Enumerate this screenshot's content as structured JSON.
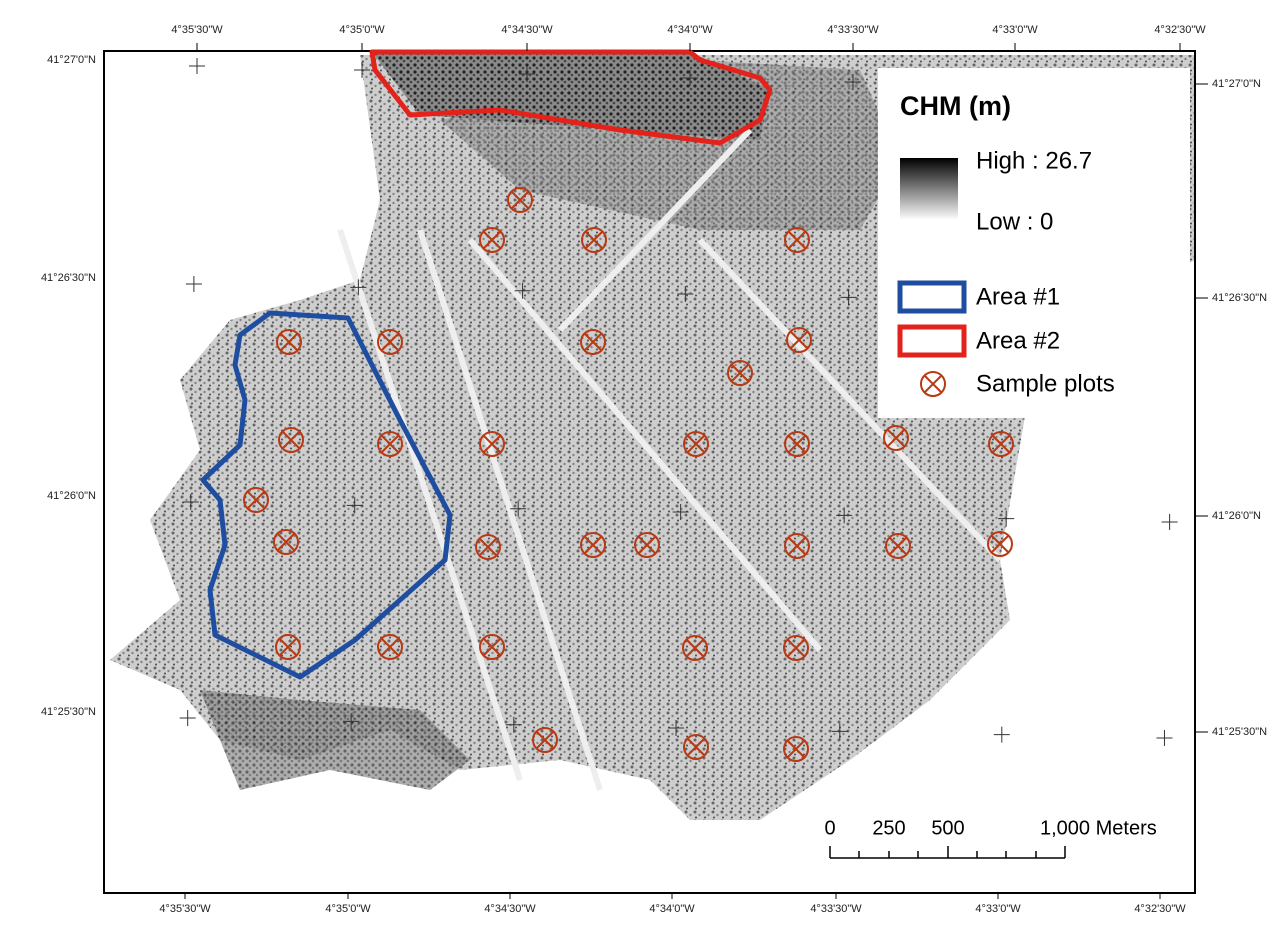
{
  "map": {
    "x_labels": [
      "4°35'30\"W",
      "4°35'0\"W",
      "4°34'30\"W",
      "4°34'0\"W",
      "4°33'30\"W",
      "4°33'0\"W",
      "4°32'30\"W"
    ],
    "y_labels": [
      "41°27'0\"N",
      "41°26'30\"N",
      "41°26'0\"N",
      "41°25'30\"N"
    ],
    "legend": {
      "title": "CHM (m)",
      "high": "High : 26.7",
      "low": "Low : 0",
      "items": [
        "Area #1",
        "Area #2",
        "Sample plots"
      ]
    },
    "scale_bar": {
      "labels": [
        "0",
        "250",
        "500",
        "1,000 Meters"
      ]
    }
  }
}
